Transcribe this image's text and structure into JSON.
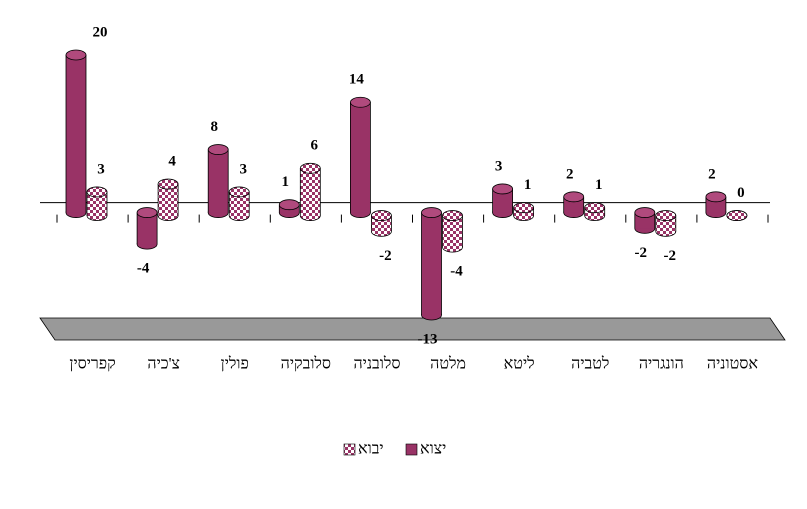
{
  "chart_data": {
    "type": "bar",
    "categories": [
      "קפריסין",
      "צ'כיה",
      "פולין",
      "סלובקיה",
      "סלובניה",
      "מלטה",
      "ליטא",
      "לטביה",
      "הונגריה",
      "אסטוניה"
    ],
    "series": [
      {
        "name": "יצוא",
        "color": "#993366",
        "values": [
          20,
          -4,
          8,
          1,
          14,
          -13,
          3,
          2,
          -2,
          2
        ]
      },
      {
        "name": "יבוא",
        "color": "#993366",
        "pattern": "checkered",
        "values": [
          3,
          4,
          3,
          6,
          -2,
          -4,
          1,
          1,
          -2,
          0
        ]
      }
    ],
    "legend": "bottom"
  }
}
